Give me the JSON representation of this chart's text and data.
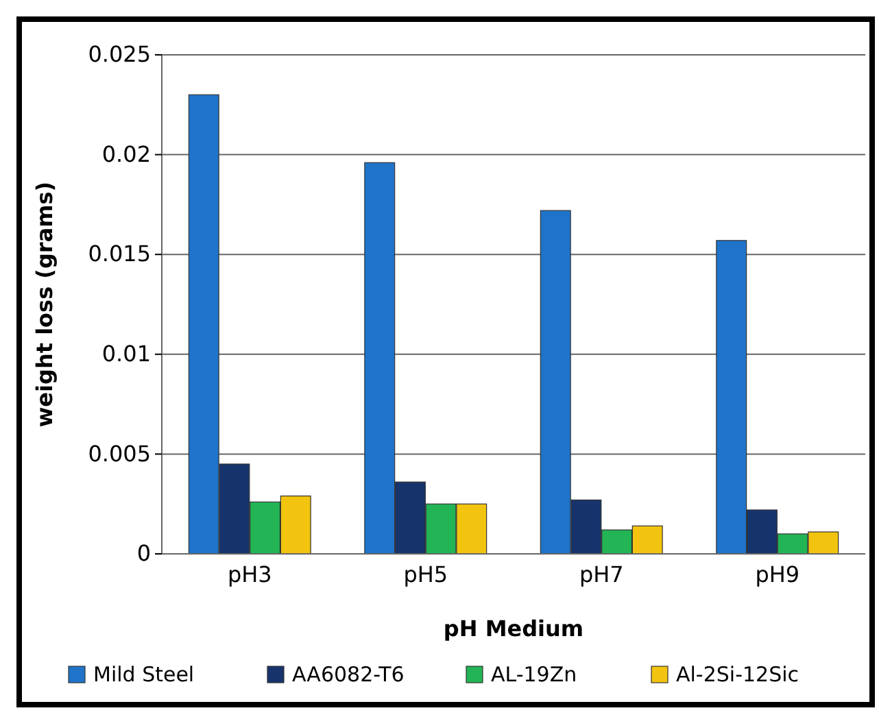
{
  "chart_data": {
    "type": "bar",
    "xlabel": "pH  Medium",
    "ylabel": "weight loss (grams)",
    "categories": [
      "pH3",
      "pH5",
      "pH7",
      "pH9"
    ],
    "series": [
      {
        "name": "Mild Steel",
        "color": "#1f74c9",
        "values": [
          0.023,
          0.0196,
          0.0172,
          0.0157
        ]
      },
      {
        "name": "AA6082-T6",
        "color": "#16336b",
        "values": [
          0.0045,
          0.0036,
          0.0027,
          0.0022
        ]
      },
      {
        "name": "AL-19Zn",
        "color": "#22b455",
        "values": [
          0.0026,
          0.0025,
          0.0012,
          0.001
        ]
      },
      {
        "name": "Al-2Si-12Sic",
        "color": "#f2c40f",
        "values": [
          0.0029,
          0.0025,
          0.0014,
          0.0011
        ]
      }
    ],
    "ylim": [
      0,
      0.025
    ],
    "yticks": [
      0,
      0.005,
      0.01,
      0.015,
      0.02,
      0.025
    ],
    "grid": "y",
    "legend": "bottom"
  }
}
